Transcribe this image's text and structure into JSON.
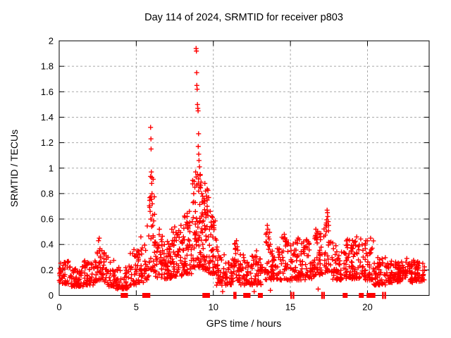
{
  "page": {
    "background": "#ffffff"
  },
  "chart_data": {
    "type": "scatter",
    "title": "Day 114 of 2024, SRMTID for receiver p803",
    "xlabel": "GPS time / hours",
    "ylabel": "SRMTID / TECUs",
    "series_name": "SRMTID",
    "legend_position": "none",
    "grid": true,
    "marker": "plus",
    "zero_marker": "filled-square",
    "xlim": [
      0,
      24
    ],
    "ylim": [
      0,
      2
    ],
    "xticks": [
      0,
      5,
      10,
      15,
      20
    ],
    "xtick_labels": [
      "0",
      "5",
      "10",
      "15",
      "20"
    ],
    "yticks": [
      0,
      0.2,
      0.4,
      0.6,
      0.8,
      1,
      1.2,
      1.4,
      1.6,
      1.8,
      2
    ],
    "ytick_labels": [
      "0",
      "0.2",
      "0.4",
      "0.6",
      "0.8",
      "1",
      "1.2",
      "1.4",
      "1.6",
      "1.8",
      "2"
    ],
    "colors": {
      "points": "#ff0000",
      "grid": "#a9a9a9",
      "axis": "#000000",
      "text": "#000000"
    },
    "max_point": [
      8.88,
      1.94
    ],
    "peak_points": [
      [
        5.93,
        1.32
      ],
      [
        5.95,
        1.23
      ],
      [
        5.96,
        1.15
      ],
      [
        5.98,
        0.97
      ],
      [
        6.0,
        0.88
      ],
      [
        6.02,
        0.8
      ],
      [
        6.04,
        0.72
      ],
      [
        5.9,
        0.66
      ],
      [
        6.06,
        0.63
      ],
      [
        5.97,
        0.6
      ],
      [
        8.88,
        1.94
      ],
      [
        8.9,
        1.92
      ],
      [
        8.92,
        1.75
      ],
      [
        8.93,
        1.65
      ],
      [
        8.95,
        1.62
      ],
      [
        8.97,
        1.5
      ],
      [
        8.99,
        1.47
      ],
      [
        9.01,
        1.45
      ],
      [
        9.04,
        1.27
      ],
      [
        9.02,
        1.17
      ],
      [
        9.05,
        1.11
      ],
      [
        9.07,
        1.06
      ],
      [
        9.1,
        1.01
      ],
      [
        8.85,
        0.97
      ],
      [
        8.88,
        0.93
      ],
      [
        9.15,
        0.95
      ],
      [
        9.2,
        0.89
      ],
      [
        8.8,
        0.85
      ],
      [
        9.25,
        0.8
      ],
      [
        9.45,
        0.88
      ],
      [
        9.5,
        0.82
      ],
      [
        9.55,
        0.78
      ],
      [
        9.42,
        0.74
      ],
      [
        9.6,
        0.7
      ],
      [
        9.48,
        0.65
      ],
      [
        9.8,
        0.66
      ],
      [
        9.9,
        0.62
      ],
      [
        10.0,
        0.58
      ],
      [
        10.05,
        0.55
      ],
      [
        9.75,
        0.52
      ],
      [
        2.6,
        0.45
      ],
      [
        2.55,
        0.43
      ],
      [
        4.85,
        0.36
      ],
      [
        5.3,
        0.46
      ],
      [
        6.5,
        0.52
      ],
      [
        7.3,
        0.52
      ],
      [
        7.9,
        0.55
      ],
      [
        8.3,
        0.62
      ],
      [
        8.45,
        0.66
      ],
      [
        11.5,
        0.43
      ],
      [
        12.8,
        0.35
      ],
      [
        13.5,
        0.55
      ],
      [
        13.53,
        0.52
      ],
      [
        13.45,
        0.49
      ],
      [
        13.57,
        0.46
      ],
      [
        14.6,
        0.48
      ],
      [
        14.65,
        0.45
      ],
      [
        15.5,
        0.45
      ],
      [
        15.85,
        0.42
      ],
      [
        16.65,
        0.52
      ],
      [
        16.7,
        0.49
      ],
      [
        16.6,
        0.46
      ],
      [
        17.38,
        0.67
      ],
      [
        17.4,
        0.65
      ],
      [
        17.42,
        0.62
      ],
      [
        17.45,
        0.58
      ],
      [
        17.48,
        0.55
      ],
      [
        18.7,
        0.44
      ],
      [
        19.3,
        0.46
      ],
      [
        20.2,
        0.45
      ],
      [
        19.9,
        0.43
      ],
      [
        10.6,
        0.03
      ],
      [
        12.65,
        0.03
      ],
      [
        13.7,
        0.04
      ],
      [
        16.8,
        0.05
      ],
      [
        22.55,
        0.29
      ]
    ],
    "cloud_segments": [
      [
        0.0,
        0.7,
        40,
        0.09,
        0.27,
        1.6
      ],
      [
        0.7,
        1.6,
        55,
        0.07,
        0.24,
        1.6
      ],
      [
        1.6,
        2.2,
        40,
        0.08,
        0.28,
        1.6
      ],
      [
        2.2,
        2.5,
        22,
        0.1,
        0.36,
        1.5
      ],
      [
        2.5,
        2.8,
        22,
        0.12,
        0.46,
        1.5
      ],
      [
        2.8,
        3.1,
        20,
        0.1,
        0.36,
        1.5
      ],
      [
        3.1,
        3.6,
        30,
        0.07,
        0.3,
        1.8
      ],
      [
        3.6,
        4.5,
        50,
        0.05,
        0.22,
        1.5
      ],
      [
        4.5,
        5.0,
        28,
        0.08,
        0.36,
        1.7
      ],
      [
        5.0,
        5.5,
        30,
        0.1,
        0.45,
        1.7
      ],
      [
        5.5,
        5.85,
        20,
        0.12,
        0.55,
        1.5
      ],
      [
        5.85,
        6.2,
        30,
        0.18,
        0.95,
        1.6
      ],
      [
        6.2,
        6.7,
        35,
        0.14,
        0.5,
        1.8
      ],
      [
        6.7,
        7.4,
        55,
        0.13,
        0.45,
        1.8
      ],
      [
        7.4,
        8.0,
        50,
        0.15,
        0.55,
        1.8
      ],
      [
        8.0,
        8.6,
        55,
        0.17,
        0.65,
        1.7
      ],
      [
        8.6,
        9.2,
        70,
        0.22,
        1.0,
        1.5
      ],
      [
        9.2,
        9.7,
        55,
        0.2,
        0.85,
        1.6
      ],
      [
        9.7,
        10.2,
        45,
        0.17,
        0.62,
        1.7
      ],
      [
        10.2,
        10.8,
        40,
        0.08,
        0.38,
        1.6
      ],
      [
        10.8,
        11.3,
        35,
        0.08,
        0.32,
        1.5
      ],
      [
        11.3,
        11.7,
        28,
        0.1,
        0.43,
        1.5
      ],
      [
        11.7,
        12.4,
        45,
        0.08,
        0.33,
        1.6
      ],
      [
        12.4,
        13.2,
        50,
        0.08,
        0.33,
        1.6
      ],
      [
        13.3,
        13.8,
        30,
        0.12,
        0.5,
        1.5
      ],
      [
        13.8,
        14.4,
        40,
        0.12,
        0.4,
        1.6
      ],
      [
        14.4,
        14.9,
        32,
        0.12,
        0.46,
        1.6
      ],
      [
        14.9,
        15.4,
        32,
        0.12,
        0.42,
        1.6
      ],
      [
        15.4,
        16.0,
        40,
        0.12,
        0.45,
        1.6
      ],
      [
        16.0,
        16.6,
        40,
        0.13,
        0.45,
        1.6
      ],
      [
        16.6,
        17.1,
        35,
        0.15,
        0.52,
        1.5
      ],
      [
        17.15,
        17.65,
        30,
        0.18,
        0.6,
        1.4
      ],
      [
        17.65,
        18.3,
        45,
        0.12,
        0.42,
        1.6
      ],
      [
        18.3,
        19.0,
        45,
        0.12,
        0.45,
        1.6
      ],
      [
        19.0,
        19.7,
        45,
        0.13,
        0.45,
        1.6
      ],
      [
        19.7,
        20.4,
        45,
        0.12,
        0.45,
        1.6
      ],
      [
        20.4,
        21.2,
        50,
        0.08,
        0.3,
        1.5
      ],
      [
        21.2,
        22.0,
        55,
        0.1,
        0.27,
        1.4
      ],
      [
        22.0,
        23.0,
        70,
        0.1,
        0.28,
        1.3
      ],
      [
        23.0,
        23.7,
        45,
        0.11,
        0.27,
        1.3
      ]
    ],
    "zero_marker_squares_x": [
      4.15,
      4.3,
      5.55,
      5.75,
      9.45,
      9.62,
      12.1,
      12.25,
      13.05,
      18.55,
      19.6,
      20.1,
      20.35
    ],
    "zero_marker_ticks_x": [
      11.35,
      11.45,
      15.05,
      15.2,
      17.05,
      17.18,
      21.0,
      21.15
    ]
  }
}
